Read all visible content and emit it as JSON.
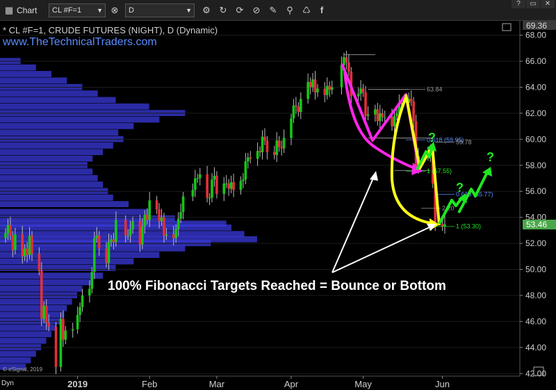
{
  "toolbar": {
    "app_label": "Chart",
    "symbol_value": "CL #F=1",
    "interval_value": "D",
    "window_buttons": [
      "?",
      "▭",
      "✕"
    ]
  },
  "chart_header": {
    "title": "* CL #F=1, CRUDE FUTURES (NIGHT), D (Dynamic)",
    "website": "www.TheTechnicalTraders.com"
  },
  "corner_labels": {
    "copyright": "© eSignal, 2019",
    "bottom_left": "Dyn"
  },
  "price_labels": {
    "top": "69.36",
    "last": "53.46"
  },
  "colors": {
    "up_candle": "#16c516",
    "down_candle": "#e0303a",
    "volume_profile": "#3a3adc",
    "axis_text": "#cfcfcf",
    "website_text": "#5a8cff",
    "last_price_box": "#4aa84a"
  },
  "chart_data": {
    "type": "candlestick",
    "y_axis": {
      "ticks": [
        "42.00",
        "44.00",
        "46.00",
        "48.00",
        "50.00",
        "52.00",
        "54.00",
        "56.00",
        "58.00",
        "60.00",
        "62.00",
        "64.00",
        "66.00",
        "68.00"
      ],
      "range": [
        41.8,
        69.1
      ],
      "side": "right"
    },
    "x_axis": {
      "labels": [
        {
          "text": "2019",
          "date": "2019-01-02"
        },
        {
          "text": "Feb",
          "date": "2019-02-01"
        },
        {
          "text": "Mar",
          "date": "2019-03-01"
        },
        {
          "text": "Apr",
          "date": "2019-04-01"
        },
        {
          "text": "May",
          "date": "2019-05-01"
        },
        {
          "text": "Jun",
          "date": "2019-06-03"
        }
      ]
    },
    "close_series": [
      {
        "date": "2018-12-03",
        "close": 52.8
      },
      {
        "date": "2018-12-04",
        "close": 53.4
      },
      {
        "date": "2018-12-05",
        "close": 52.6
      },
      {
        "date": "2018-12-06",
        "close": 51.5
      },
      {
        "date": "2018-12-07",
        "close": 52.7
      },
      {
        "date": "2018-12-10",
        "close": 51.0
      },
      {
        "date": "2018-12-11",
        "close": 51.6
      },
      {
        "date": "2018-12-12",
        "close": 51.1
      },
      {
        "date": "2018-12-13",
        "close": 52.6
      },
      {
        "date": "2018-12-14",
        "close": 51.2
      },
      {
        "date": "2018-12-17",
        "close": 49.9
      },
      {
        "date": "2018-12-18",
        "close": 46.2
      },
      {
        "date": "2018-12-19",
        "close": 47.2
      },
      {
        "date": "2018-12-20",
        "close": 45.9
      },
      {
        "date": "2018-12-21",
        "close": 45.6
      },
      {
        "date": "2018-12-24",
        "close": 42.5
      },
      {
        "date": "2018-12-26",
        "close": 46.2
      },
      {
        "date": "2018-12-27",
        "close": 44.6
      },
      {
        "date": "2018-12-28",
        "close": 45.3
      },
      {
        "date": "2018-12-31",
        "close": 45.4
      },
      {
        "date": "2019-01-02",
        "close": 46.5
      },
      {
        "date": "2019-01-03",
        "close": 47.1
      },
      {
        "date": "2019-01-04",
        "close": 48.0
      },
      {
        "date": "2019-01-07",
        "close": 48.5
      },
      {
        "date": "2019-01-08",
        "close": 49.8
      },
      {
        "date": "2019-01-09",
        "close": 52.4
      },
      {
        "date": "2019-01-10",
        "close": 52.6
      },
      {
        "date": "2019-01-11",
        "close": 51.6
      },
      {
        "date": "2019-01-14",
        "close": 50.5
      },
      {
        "date": "2019-01-15",
        "close": 52.1
      },
      {
        "date": "2019-01-16",
        "close": 52.3
      },
      {
        "date": "2019-01-17",
        "close": 52.1
      },
      {
        "date": "2019-01-18",
        "close": 53.8
      },
      {
        "date": "2019-01-22",
        "close": 52.6
      },
      {
        "date": "2019-01-23",
        "close": 52.6
      },
      {
        "date": "2019-01-24",
        "close": 53.1
      },
      {
        "date": "2019-01-25",
        "close": 53.7
      },
      {
        "date": "2019-01-28",
        "close": 51.9
      },
      {
        "date": "2019-01-29",
        "close": 53.3
      },
      {
        "date": "2019-01-30",
        "close": 54.2
      },
      {
        "date": "2019-01-31",
        "close": 53.8
      },
      {
        "date": "2019-02-01",
        "close": 55.3
      },
      {
        "date": "2019-02-04",
        "close": 54.6
      },
      {
        "date": "2019-02-05",
        "close": 53.7
      },
      {
        "date": "2019-02-06",
        "close": 54.0
      },
      {
        "date": "2019-02-07",
        "close": 52.6
      },
      {
        "date": "2019-02-08",
        "close": 52.7
      },
      {
        "date": "2019-02-11",
        "close": 52.4
      },
      {
        "date": "2019-02-12",
        "close": 53.1
      },
      {
        "date": "2019-02-13",
        "close": 53.9
      },
      {
        "date": "2019-02-14",
        "close": 54.4
      },
      {
        "date": "2019-02-15",
        "close": 55.6
      },
      {
        "date": "2019-02-19",
        "close": 56.1
      },
      {
        "date": "2019-02-20",
        "close": 57.0
      },
      {
        "date": "2019-02-21",
        "close": 57.0
      },
      {
        "date": "2019-02-22",
        "close": 57.3
      },
      {
        "date": "2019-02-25",
        "close": 55.5
      },
      {
        "date": "2019-02-26",
        "close": 55.5
      },
      {
        "date": "2019-02-27",
        "close": 56.9
      },
      {
        "date": "2019-02-28",
        "close": 57.2
      },
      {
        "date": "2019-03-01",
        "close": 55.8
      },
      {
        "date": "2019-03-04",
        "close": 56.6
      },
      {
        "date": "2019-03-05",
        "close": 56.6
      },
      {
        "date": "2019-03-06",
        "close": 56.2
      },
      {
        "date": "2019-03-07",
        "close": 56.7
      },
      {
        "date": "2019-03-08",
        "close": 56.1
      },
      {
        "date": "2019-03-11",
        "close": 56.8
      },
      {
        "date": "2019-03-12",
        "close": 56.9
      },
      {
        "date": "2019-03-13",
        "close": 58.3
      },
      {
        "date": "2019-03-14",
        "close": 58.6
      },
      {
        "date": "2019-03-15",
        "close": 58.5
      },
      {
        "date": "2019-03-18",
        "close": 59.1
      },
      {
        "date": "2019-03-19",
        "close": 59.0
      },
      {
        "date": "2019-03-20",
        "close": 60.2
      },
      {
        "date": "2019-03-21",
        "close": 59.9
      },
      {
        "date": "2019-03-22",
        "close": 59.0
      },
      {
        "date": "2019-03-25",
        "close": 58.8
      },
      {
        "date": "2019-03-26",
        "close": 59.9
      },
      {
        "date": "2019-03-27",
        "close": 59.4
      },
      {
        "date": "2019-03-28",
        "close": 59.3
      },
      {
        "date": "2019-03-29",
        "close": 60.1
      },
      {
        "date": "2019-04-01",
        "close": 61.6
      },
      {
        "date": "2019-04-02",
        "close": 62.6
      },
      {
        "date": "2019-04-03",
        "close": 62.5
      },
      {
        "date": "2019-04-04",
        "close": 62.1
      },
      {
        "date": "2019-04-05",
        "close": 63.1
      },
      {
        "date": "2019-04-08",
        "close": 64.4
      },
      {
        "date": "2019-04-09",
        "close": 64.0
      },
      {
        "date": "2019-04-10",
        "close": 64.6
      },
      {
        "date": "2019-04-11",
        "close": 63.6
      },
      {
        "date": "2019-04-12",
        "close": 63.9
      },
      {
        "date": "2019-04-15",
        "close": 63.4
      },
      {
        "date": "2019-04-16",
        "close": 64.1
      },
      {
        "date": "2019-04-17",
        "close": 63.8
      },
      {
        "date": "2019-04-18",
        "close": 64.0
      },
      {
        "date": "2019-04-22",
        "close": 65.7
      },
      {
        "date": "2019-04-23",
        "close": 66.3
      },
      {
        "date": "2019-04-24",
        "close": 65.9
      },
      {
        "date": "2019-04-25",
        "close": 65.2
      },
      {
        "date": "2019-04-26",
        "close": 63.3
      },
      {
        "date": "2019-04-29",
        "close": 63.5
      },
      {
        "date": "2019-04-30",
        "close": 63.9
      },
      {
        "date": "2019-05-01",
        "close": 63.6
      },
      {
        "date": "2019-05-02",
        "close": 61.8
      },
      {
        "date": "2019-05-03",
        "close": 61.9
      },
      {
        "date": "2019-05-06",
        "close": 62.3
      },
      {
        "date": "2019-05-07",
        "close": 61.4
      },
      {
        "date": "2019-05-08",
        "close": 62.0
      },
      {
        "date": "2019-05-09",
        "close": 61.7
      },
      {
        "date": "2019-05-10",
        "close": 61.7
      },
      {
        "date": "2019-05-13",
        "close": 61.0
      },
      {
        "date": "2019-05-14",
        "close": 61.8
      },
      {
        "date": "2019-05-15",
        "close": 62.0
      },
      {
        "date": "2019-05-16",
        "close": 62.8
      },
      {
        "date": "2019-05-17",
        "close": 62.8
      },
      {
        "date": "2019-05-20",
        "close": 63.1
      },
      {
        "date": "2019-05-21",
        "close": 62.9
      },
      {
        "date": "2019-05-22",
        "close": 61.4
      },
      {
        "date": "2019-05-23",
        "close": 57.9
      },
      {
        "date": "2019-05-24",
        "close": 58.7
      },
      {
        "date": "2019-05-28",
        "close": 59.1
      },
      {
        "date": "2019-05-29",
        "close": 58.8
      },
      {
        "date": "2019-05-30",
        "close": 56.6
      },
      {
        "date": "2019-05-31",
        "close": 53.5
      },
      {
        "date": "2019-06-03",
        "close": 53.3
      },
      {
        "date": "2019-06-04",
        "close": 53.46
      }
    ],
    "volume_profile": [
      {
        "price": 52.3,
        "volume": 100
      },
      {
        "price": 52.7,
        "volume": 95
      },
      {
        "price": 53.2,
        "volume": 90
      },
      {
        "price": 53.5,
        "volume": 88
      },
      {
        "price": 52.0,
        "volume": 82
      },
      {
        "price": 51.6,
        "volume": 72
      },
      {
        "price": 53.9,
        "volume": 68
      },
      {
        "price": 51.1,
        "volume": 62
      },
      {
        "price": 54.4,
        "volume": 58
      },
      {
        "price": 50.6,
        "volume": 52
      },
      {
        "price": 55.0,
        "volume": 50
      },
      {
        "price": 50.1,
        "volume": 45
      },
      {
        "price": 55.5,
        "volume": 44
      },
      {
        "price": 49.5,
        "volume": 40
      },
      {
        "price": 56.0,
        "volume": 42
      },
      {
        "price": 56.5,
        "volume": 40
      },
      {
        "price": 57.0,
        "volume": 38
      },
      {
        "price": 57.5,
        "volume": 36
      },
      {
        "price": 58.0,
        "volume": 34
      },
      {
        "price": 58.5,
        "volume": 36
      },
      {
        "price": 59.0,
        "volume": 40
      },
      {
        "price": 59.5,
        "volume": 44
      },
      {
        "price": 60.0,
        "volume": 48
      },
      {
        "price": 60.5,
        "volume": 46
      },
      {
        "price": 61.0,
        "volume": 52
      },
      {
        "price": 61.5,
        "volume": 62
      },
      {
        "price": 62.0,
        "volume": 72
      },
      {
        "price": 62.5,
        "volume": 58
      },
      {
        "price": 63.0,
        "volume": 45
      },
      {
        "price": 63.5,
        "volume": 38
      },
      {
        "price": 64.0,
        "volume": 32
      },
      {
        "price": 64.5,
        "volume": 26
      },
      {
        "price": 65.0,
        "volume": 20
      },
      {
        "price": 65.5,
        "volume": 14
      },
      {
        "price": 66.0,
        "volume": 8
      },
      {
        "price": 49.0,
        "volume": 36
      },
      {
        "price": 48.5,
        "volume": 32
      },
      {
        "price": 48.0,
        "volume": 30
      },
      {
        "price": 47.5,
        "volume": 28
      },
      {
        "price": 47.0,
        "volume": 26
      },
      {
        "price": 46.5,
        "volume": 25
      },
      {
        "price": 46.0,
        "volume": 24
      },
      {
        "price": 45.5,
        "volume": 22
      },
      {
        "price": 45.0,
        "volume": 20
      },
      {
        "price": 44.5,
        "volume": 18
      },
      {
        "price": 44.0,
        "volume": 16
      },
      {
        "price": 43.5,
        "volume": 14
      },
      {
        "price": 43.0,
        "volume": 12
      },
      {
        "price": 42.5,
        "volume": 10
      }
    ],
    "fib_levels": [
      {
        "label": "63.84",
        "price": 63.84
      },
      {
        "label": "0.618 (59.95)",
        "price": 59.95
      },
      {
        "label": "59.78",
        "price": 59.78
      },
      {
        "label": "1 (57.55)",
        "price": 57.55
      },
      {
        "label": "0.618 (55.77)",
        "price": 55.77
      },
      {
        "label": "2.20",
        "price": 54.7
      },
      {
        "label": "1 (53.30)",
        "price": 53.3
      }
    ],
    "reference_lines": [
      {
        "date_from": "2019-04-23",
        "date_to": "2019-05-06",
        "price": 66.5
      },
      {
        "date_from": "2019-05-03",
        "date_to": "2019-05-20",
        "price": 63.84
      },
      {
        "date_from": "2019-05-03",
        "date_to": "2019-05-30",
        "price": 60.1
      },
      {
        "date_from": "2019-05-14",
        "date_to": "2019-05-29",
        "price": 57.6
      }
    ],
    "annotation": "100% Fibonacci Targets Reached = Bounce or Bottom",
    "question_marks": [
      "?",
      "?",
      "?"
    ]
  }
}
